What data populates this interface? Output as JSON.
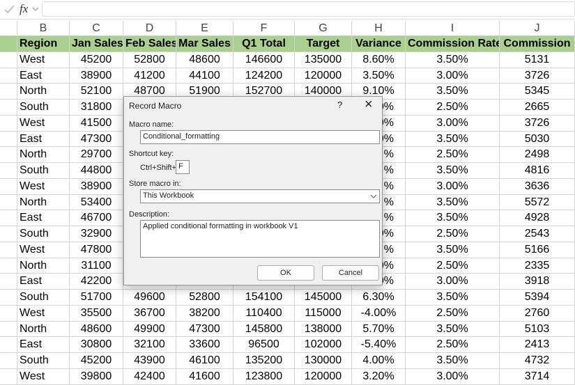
{
  "formula_bar": {
    "fx_label": "fx"
  },
  "columns": [
    "B",
    "C",
    "D",
    "E",
    "F",
    "G",
    "H",
    "I",
    "J"
  ],
  "table": {
    "header": [
      "Region",
      "Jan Sales",
      "Feb Sales",
      "Mar Sales",
      "Q1 Total",
      "Target",
      "Variance",
      "Commission Rate",
      "Commission"
    ],
    "rows": [
      [
        "West",
        "45200",
        "52800",
        "48600",
        "146600",
        "135000",
        "8.60%",
        "3.50%",
        "5131"
      ],
      [
        "East",
        "38900",
        "41200",
        "44100",
        "124200",
        "120000",
        "3.50%",
        "3.00%",
        "3726"
      ],
      [
        "North",
        "52100",
        "48700",
        "51900",
        "152700",
        "140000",
        "9.10%",
        "3.50%",
        "5345"
      ],
      [
        "South",
        "31800",
        null,
        null,
        null,
        null,
        "0%",
        "2.50%",
        "2665"
      ],
      [
        "West",
        "41500",
        null,
        null,
        null,
        null,
        "0%",
        "3.00%",
        "3726"
      ],
      [
        "East",
        "47300",
        null,
        null,
        null,
        null,
        "0%",
        "3.50%",
        "5030"
      ],
      [
        "North",
        "29700",
        null,
        null,
        null,
        null,
        "%",
        "2.50%",
        "2498"
      ],
      [
        "South",
        "44800",
        null,
        null,
        null,
        null,
        "%",
        "3.50%",
        "4816"
      ],
      [
        "West",
        "38900",
        null,
        null,
        null,
        null,
        "%",
        "3.00%",
        "3636"
      ],
      [
        "North",
        "53400",
        null,
        null,
        null,
        null,
        "%",
        "3.50%",
        "5572"
      ],
      [
        "East",
        "46700",
        null,
        null,
        null,
        null,
        "%",
        "3.50%",
        "4928"
      ],
      [
        "South",
        "32900",
        null,
        null,
        null,
        null,
        "0%",
        "2.50%",
        "2543"
      ],
      [
        "West",
        "47800",
        null,
        null,
        null,
        null,
        "%",
        "3.50%",
        "5166"
      ],
      [
        "North",
        "31100",
        null,
        null,
        null,
        null,
        "0%",
        "2.50%",
        "2335"
      ],
      [
        "East",
        "42200",
        null,
        null,
        null,
        null,
        "0%",
        "3.00%",
        "3918"
      ],
      [
        "South",
        "51700",
        "49600",
        "52800",
        "154100",
        "145000",
        "6.30%",
        "3.50%",
        "5394"
      ],
      [
        "West",
        "35500",
        "36700",
        "38200",
        "110400",
        "115000",
        "-4.00%",
        "2.50%",
        "2760"
      ],
      [
        "North",
        "48600",
        "49900",
        "47300",
        "145800",
        "138000",
        "5.70%",
        "3.50%",
        "5103"
      ],
      [
        "East",
        "30800",
        "32100",
        "33600",
        "96500",
        "102000",
        "-5.40%",
        "2.50%",
        "2413"
      ],
      [
        "South",
        "45200",
        "43900",
        "46100",
        "135200",
        "130000",
        "4.00%",
        "3.50%",
        "4732"
      ],
      [
        "West",
        "39800",
        "42400",
        "41600",
        "123800",
        "120000",
        "3.20%",
        "3.00%",
        "3714"
      ]
    ]
  },
  "dialog": {
    "title": "Record Macro",
    "help": "?",
    "close": "×",
    "macro_name_label": "Macro name:",
    "macro_name": "Conditional_formatting",
    "shortcut_label": "Shortcut key:",
    "shortcut_prefix": "Ctrl+Shift+",
    "shortcut_key": "F",
    "store_label": "Store macro in:",
    "store_value": "This Workbook",
    "description_label": "Description:",
    "description": "Applied conditional formatting in workbook V1",
    "ok": "OK",
    "cancel": "Cancel"
  }
}
